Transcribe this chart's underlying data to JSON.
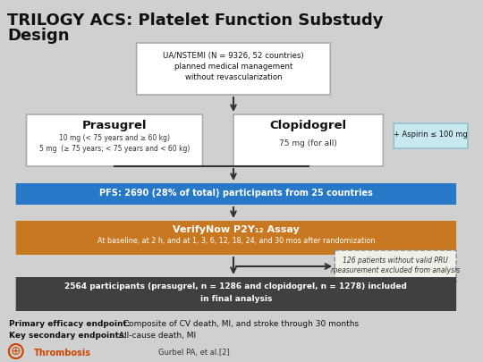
{
  "title_line1": "TRILOGY ACS: Platelet Function Substudy",
  "title_line2": "Design",
  "bg_color": "#d0d0d0",
  "top_box": {
    "text": "UA/NSTEMI (N = 9326, 52 countries)\nplanned medical management\nwithout revascularization",
    "bg": "#ffffff",
    "edge": "#888888"
  },
  "prasugrel_box": {
    "title": "Prasugrel",
    "text": "10 mg (< 75 years and ≥ 60 kg)\n5 mg  (≥ 75 years; < 75 years and < 60 kg)",
    "bg": "#ffffff",
    "edge": "#888888"
  },
  "clopidogrel_box": {
    "title": "Clopidogrel",
    "text": "75 mg (for all)",
    "bg": "#ffffff",
    "edge": "#888888"
  },
  "aspirin_box": {
    "text": "+ Aspirin ≤ 100 mg",
    "bg": "#c8e8f0",
    "edge": "#88bbcc"
  },
  "blue_bar": {
    "text": "PFS: 2690 (28% of total) participants from 25 countries",
    "bg": "#2878c8",
    "text_color": "#ffffff"
  },
  "orange_bar": {
    "title": "VerifyNow P2Y₁₂ Assay",
    "text": "At baseline, at 2 h, and at 1, 3, 6, 12, 18, 24, and 30 mos after randomization",
    "bg": "#c87820",
    "text_color": "#ffffff"
  },
  "exclusion_box": {
    "text": "126 patients without valid PRU\nmeasurement excluded from analysis",
    "bg": "#f0f0e8",
    "edge_style": "dashed",
    "edge_color": "#888888",
    "text_style": "italic"
  },
  "final_box": {
    "text": "2564 participants (prasugrel, n = 1286 and clopidogrel, n = 1278) included\nin final analysis",
    "bg": "#404040",
    "text_color": "#ffffff"
  },
  "footer_line1_bold": "Primary efficacy endpoint: ",
  "footer_line1_rest": " Composite of CV death, MI, and stroke through 30 months",
  "footer_line2_bold": "Key secondary endpoints: ",
  "footer_line2_rest": "All-cause death, MI",
  "citation": "Gurbel PA, et al.⁺²⁾",
  "citation2": "Gurbel PA, et al.[2]"
}
